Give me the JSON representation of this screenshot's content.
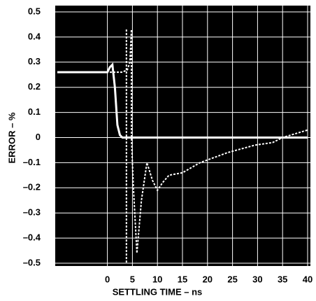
{
  "chart_data": {
    "type": "line",
    "xlabel": "SETTLING TIME – ns",
    "ylabel": "ERROR – %",
    "xlim": [
      -10,
      40
    ],
    "ylim": [
      -0.5,
      0.5
    ],
    "xticks": [
      0,
      5,
      10,
      15,
      20,
      25,
      30,
      35,
      40
    ],
    "yticks": [
      0.5,
      0.4,
      0.3,
      0.2,
      0.1,
      0,
      {
        "value": -0.1,
        "label": "–0.1"
      },
      {
        "value": -0.2,
        "label": "–0.2"
      },
      {
        "value": -0.3,
        "label": "–0.3"
      },
      {
        "value": -0.4,
        "label": "–0.4"
      },
      {
        "value": -0.5,
        "label": "–0.5"
      }
    ],
    "grid": true,
    "series": [
      {
        "color": "#ffffff",
        "dashed": false,
        "x": [
          -10,
          -1,
          0,
          0.5,
          1,
          1.5,
          2,
          2.5,
          3,
          40
        ],
        "values": [
          0.26,
          0.26,
          0.26,
          0.28,
          0.29,
          0.2,
          0.05,
          0.01,
          0,
          0
        ]
      },
      {
        "color": "#ffffff",
        "dashed": true,
        "x": [
          -10,
          3,
          4,
          4.5,
          4.8,
          4.8,
          5.2,
          5.9,
          6.8,
          7.9,
          9,
          10,
          11,
          12.3,
          15,
          18.5,
          24,
          29.5,
          33,
          35,
          40
        ],
        "values": [
          0.26,
          0.26,
          0.27,
          0.3,
          0.43,
          0,
          -0.2,
          -0.46,
          -0.25,
          -0.1,
          -0.17,
          -0.21,
          -0.18,
          -0.15,
          -0.14,
          -0.1,
          -0.06,
          -0.03,
          -0.02,
          0,
          0.03
        ]
      },
      {
        "color": "#ffffff",
        "dashed": true,
        "x": [
          3.8,
          3.8
        ],
        "values": [
          0.43,
          -0.5
        ]
      }
    ]
  }
}
